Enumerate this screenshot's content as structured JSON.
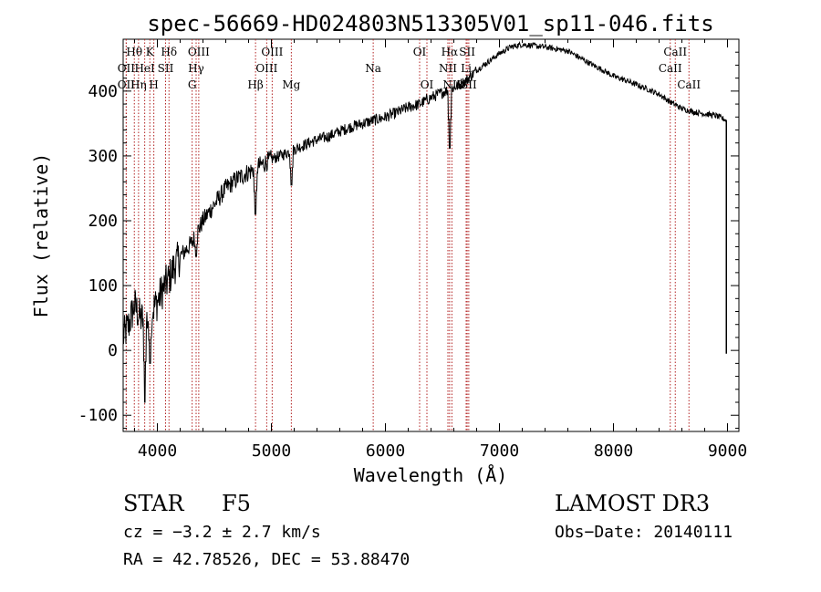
{
  "chart_data": {
    "type": "line",
    "title": "spec-56669-HD024803N513305V01_sp11-046.fits",
    "xlabel": "Wavelength (Å)",
    "ylabel": "Flux (relative)",
    "xlim": [
      3700,
      9100
    ],
    "ylim": [
      -125,
      480
    ],
    "xticks": [
      4000,
      5000,
      6000,
      7000,
      8000,
      9000
    ],
    "yticks": [
      -100,
      0,
      100,
      200,
      300,
      400
    ],
    "series": [
      {
        "name": "spectrum",
        "x": [
          3700,
          3750,
          3800,
          3850,
          3900,
          3950,
          4000,
          4050,
          4100,
          4150,
          4200,
          4300,
          4400,
          4500,
          4600,
          4700,
          4800,
          4900,
          5000,
          5100,
          5200,
          5300,
          5400,
          5500,
          5600,
          5700,
          5800,
          5900,
          6000,
          6100,
          6200,
          6300,
          6400,
          6500,
          6600,
          6700,
          6800,
          6900,
          7000,
          7100,
          7200,
          7300,
          7400,
          7500,
          7600,
          7700,
          7800,
          7900,
          8000,
          8100,
          8200,
          8300,
          8400,
          8500,
          8600,
          8700,
          8800,
          8900,
          8990
        ],
        "y": [
          20,
          40,
          70,
          50,
          45,
          60,
          75,
          95,
          110,
          130,
          145,
          165,
          200,
          225,
          250,
          265,
          275,
          285,
          295,
          302,
          310,
          318,
          325,
          330,
          338,
          345,
          350,
          355,
          360,
          367,
          375,
          380,
          390,
          398,
          405,
          415,
          432,
          445,
          458,
          468,
          472,
          470,
          468,
          465,
          462,
          452,
          442,
          433,
          423,
          417,
          410,
          403,
          395,
          383,
          373,
          368,
          365,
          362,
          355
        ]
      }
    ],
    "absorption_dips": [
      {
        "x": 3890,
        "y": -80
      },
      {
        "x": 3935,
        "y": -20
      },
      {
        "x": 4340,
        "y": 145
      },
      {
        "x": 4861,
        "y": 210
      },
      {
        "x": 5175,
        "y": 255
      },
      {
        "x": 6563,
        "y": 312
      }
    ],
    "line_markers": [
      {
        "label": "Hθ",
        "x": 3798,
        "row": 0
      },
      {
        "label": "K",
        "x": 3934,
        "row": 0
      },
      {
        "label": "Hδ",
        "x": 4102,
        "row": 0
      },
      {
        "label": "OIII",
        "x": 4363,
        "row": 0
      },
      {
        "label": "OIII",
        "x": 5007,
        "row": 0
      },
      {
        "label": "OI",
        "x": 6300,
        "row": 0
      },
      {
        "label": "Hα",
        "x": 6563,
        "row": 0
      },
      {
        "label": "SII",
        "x": 6717,
        "row": 0
      },
      {
        "label": "CaII",
        "x": 8542,
        "row": 0
      },
      {
        "label": "OII",
        "x": 3727,
        "row": 1
      },
      {
        "label": "HeI",
        "x": 3889,
        "row": 1
      },
      {
        "label": "SII",
        "x": 4072,
        "row": 1
      },
      {
        "label": "Hγ",
        "x": 4340,
        "row": 1
      },
      {
        "label": "OIII",
        "x": 4959,
        "row": 1
      },
      {
        "label": "Na",
        "x": 5893,
        "row": 1
      },
      {
        "label": "NII",
        "x": 6548,
        "row": 1
      },
      {
        "label": "Li",
        "x": 6708,
        "row": 1
      },
      {
        "label": "CaII",
        "x": 8498,
        "row": 1
      },
      {
        "label": "OII",
        "x": 3727,
        "row": 2
      },
      {
        "label": "Hη",
        "x": 3835,
        "row": 2
      },
      {
        "label": "H",
        "x": 3969,
        "row": 2
      },
      {
        "label": "G",
        "x": 4305,
        "row": 2
      },
      {
        "label": "Hβ",
        "x": 4861,
        "row": 2
      },
      {
        "label": "Mg",
        "x": 5175,
        "row": 2
      },
      {
        "label": "OI",
        "x": 6364,
        "row": 2
      },
      {
        "label": "NII",
        "x": 6583,
        "row": 2
      },
      {
        "label": "SII",
        "x": 6731,
        "row": 2
      },
      {
        "label": "CaII",
        "x": 8662,
        "row": 2
      }
    ]
  },
  "info": {
    "object_class": "STAR",
    "subclass": "F5",
    "survey": "LAMOST DR3",
    "cz": "cz = −3.2 ± 2.7 km/s",
    "obs_date": "Obs−Date: 20140111",
    "coords": "RA =  42.78526, DEC =  53.88470"
  },
  "colors": {
    "marker": "#b22222",
    "line": "#000000"
  }
}
